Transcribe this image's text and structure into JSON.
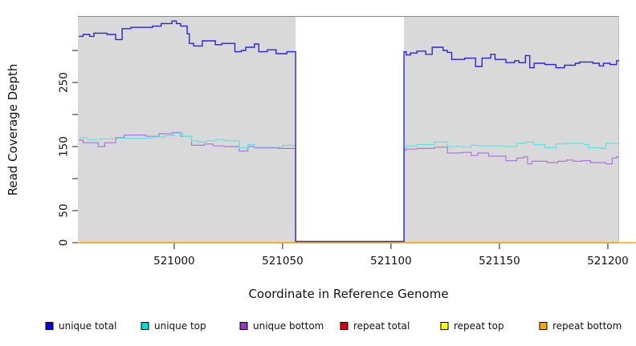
{
  "chart_data": {
    "type": "line",
    "title": "",
    "xlabel": "Coordinate in Reference Genome",
    "ylabel": "Read Coverage Depth",
    "xlim": [
      520955.6,
      521205.2
    ],
    "ylim": [
      0,
      353.8
    ],
    "x_ticks": [
      521000,
      521050,
      521100,
      521150,
      521200
    ],
    "x_tick_labels": [
      "521000",
      "521050",
      "521100",
      "521150",
      "521200"
    ],
    "y_ticks": [
      0,
      50,
      100,
      150,
      200,
      250,
      300
    ],
    "y_tick_labels": [
      "0",
      "50",
      "",
      "150",
      "",
      "250",
      ""
    ],
    "grid": "off",
    "legend_position": "bottom",
    "plot_background": "#d9d9d9",
    "no_data_region": {
      "start": 521056,
      "end": 521106,
      "fill": "#ffffff"
    },
    "legend": [
      {
        "label": "unique total",
        "color": "#0000dc"
      },
      {
        "label": "unique top",
        "color": "#00dcdc"
      },
      {
        "label": "unique bottom",
        "color": "#9932cc"
      },
      {
        "label": "repeat total",
        "color": "#dc0000"
      },
      {
        "label": "repeat top",
        "color": "#ffff00"
      },
      {
        "label": "repeat bottom",
        "color": "#ffa500"
      }
    ],
    "draw_order": [
      "repeat total",
      "repeat top",
      "unique bottom",
      "unique top",
      "repeat bottom",
      "unique total"
    ],
    "series": [
      {
        "name": "unique total",
        "color": "#2727d8",
        "step": true,
        "points": [
          [
            520956,
            322
          ],
          [
            520958,
            325
          ],
          [
            520961,
            322
          ],
          [
            520963,
            327
          ],
          [
            520969,
            325
          ],
          [
            520973,
            317
          ],
          [
            520976,
            334
          ],
          [
            520980,
            336
          ],
          [
            520990,
            338
          ],
          [
            520994,
            342
          ],
          [
            520999,
            346
          ],
          [
            521001,
            342
          ],
          [
            521003,
            338
          ],
          [
            521006,
            326
          ],
          [
            521007,
            311
          ],
          [
            521009,
            307
          ],
          [
            521013,
            315
          ],
          [
            521019,
            309
          ],
          [
            521022,
            311
          ],
          [
            521028,
            298
          ],
          [
            521031,
            300
          ],
          [
            521033,
            305
          ],
          [
            521037,
            310
          ],
          [
            521039,
            298
          ],
          [
            521043,
            301
          ],
          [
            521047,
            295
          ],
          [
            521052,
            298
          ],
          [
            521056,
            2
          ],
          [
            521106,
            298
          ],
          [
            521107,
            293
          ],
          [
            521109,
            296
          ],
          [
            521112,
            299
          ],
          [
            521116,
            294
          ],
          [
            521119,
            305
          ],
          [
            521124,
            300
          ],
          [
            521126,
            297
          ],
          [
            521128,
            286
          ],
          [
            521134,
            288
          ],
          [
            521139,
            275
          ],
          [
            521142,
            288
          ],
          [
            521146,
            294
          ],
          [
            521148,
            286
          ],
          [
            521153,
            281
          ],
          [
            521157,
            284
          ],
          [
            521159,
            281
          ],
          [
            521162,
            292
          ],
          [
            521164,
            273
          ],
          [
            521166,
            280
          ],
          [
            521171,
            278
          ],
          [
            521176,
            273
          ],
          [
            521180,
            277
          ],
          [
            521185,
            280
          ],
          [
            521187,
            282
          ],
          [
            521193,
            280
          ],
          [
            521196,
            276
          ],
          [
            521198,
            280
          ],
          [
            521201,
            278
          ],
          [
            521204,
            284
          ]
        ]
      },
      {
        "name": "unique top",
        "color": "#5be3e3",
        "step": true,
        "points": [
          [
            520956,
            164
          ],
          [
            520960,
            161
          ],
          [
            520966,
            162
          ],
          [
            520974,
            163
          ],
          [
            520990,
            165
          ],
          [
            520996,
            167
          ],
          [
            521000,
            171
          ],
          [
            521004,
            166
          ],
          [
            521008,
            159
          ],
          [
            521011,
            157
          ],
          [
            521015,
            159
          ],
          [
            521019,
            161
          ],
          [
            521023,
            159
          ],
          [
            521030,
            148
          ],
          [
            521034,
            153
          ],
          [
            521037,
            149
          ],
          [
            521050,
            152
          ],
          [
            521056,
            0
          ],
          [
            521106,
            148
          ],
          [
            521107,
            151
          ],
          [
            521112,
            153
          ],
          [
            521120,
            157
          ],
          [
            521126,
            150
          ],
          [
            521133,
            149
          ],
          [
            521137,
            152
          ],
          [
            521140,
            151
          ],
          [
            521152,
            150
          ],
          [
            521158,
            155
          ],
          [
            521162,
            157
          ],
          [
            521166,
            153
          ],
          [
            521171,
            148
          ],
          [
            521176,
            154
          ],
          [
            521180,
            155
          ],
          [
            521189,
            153
          ],
          [
            521191,
            148
          ],
          [
            521197,
            147
          ],
          [
            521199,
            155
          ]
        ]
      },
      {
        "name": "unique bottom",
        "color": "#ae74db",
        "step": true,
        "points": [
          [
            520956,
            160
          ],
          [
            520958,
            156
          ],
          [
            520965,
            150
          ],
          [
            520968,
            156
          ],
          [
            520973,
            164
          ],
          [
            520977,
            168
          ],
          [
            520987,
            166
          ],
          [
            520993,
            170
          ],
          [
            520999,
            172
          ],
          [
            521003,
            166
          ],
          [
            521008,
            152
          ],
          [
            521014,
            154
          ],
          [
            521018,
            151
          ],
          [
            521023,
            150
          ],
          [
            521030,
            143
          ],
          [
            521034,
            150
          ],
          [
            521037,
            148
          ],
          [
            521048,
            147
          ],
          [
            521056,
            0
          ],
          [
            521106,
            144
          ],
          [
            521107,
            146
          ],
          [
            521112,
            147
          ],
          [
            521120,
            149
          ],
          [
            521126,
            140
          ],
          [
            521133,
            141
          ],
          [
            521137,
            136
          ],
          [
            521140,
            140
          ],
          [
            521145,
            135
          ],
          [
            521153,
            128
          ],
          [
            521158,
            132
          ],
          [
            521161,
            134
          ],
          [
            521163,
            123
          ],
          [
            521165,
            127
          ],
          [
            521172,
            125
          ],
          [
            521177,
            127
          ],
          [
            521181,
            129
          ],
          [
            521184,
            127
          ],
          [
            521188,
            128
          ],
          [
            521192,
            125
          ],
          [
            521199,
            123
          ],
          [
            521202,
            132
          ],
          [
            521204,
            134
          ]
        ]
      },
      {
        "name": "repeat total",
        "color": "#dc0000",
        "step": true,
        "points": [
          [
            520956,
            0
          ]
        ]
      },
      {
        "name": "repeat top",
        "color": "#ffff00",
        "step": true,
        "points": [
          [
            520956,
            0
          ]
        ]
      },
      {
        "name": "repeat bottom",
        "color": "#ffa500",
        "step": true,
        "extends_past_plot": true,
        "points": [
          [
            520956,
            0
          ]
        ]
      }
    ]
  }
}
